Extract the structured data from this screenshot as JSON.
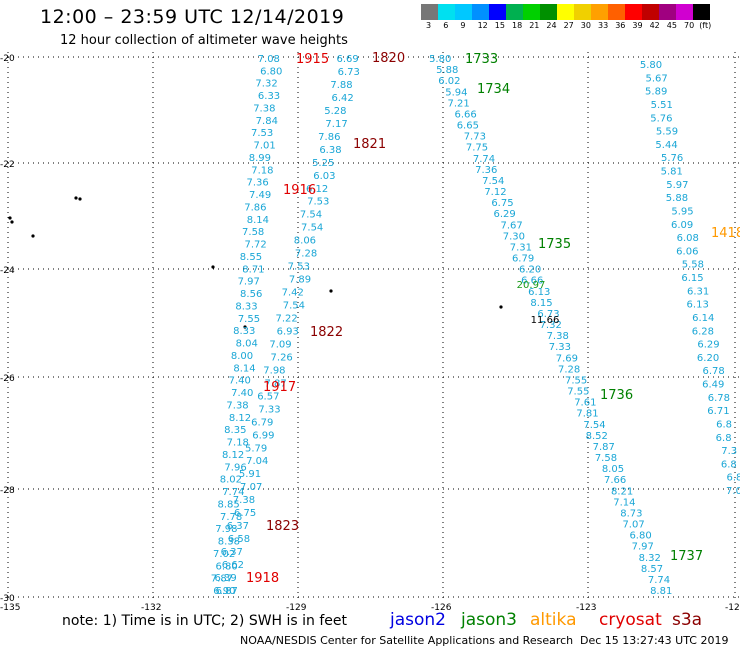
{
  "header": {
    "title": "12:00 – 23:59 UTC 12/14/2019",
    "subtitle": "12 hour collection of altimeter wave heights"
  },
  "colorbar": {
    "colors": [
      "#777777",
      "#00e0f0",
      "#00c8ff",
      "#0090ff",
      "#0000ff",
      "#00b050",
      "#00d000",
      "#009000",
      "#ffff00",
      "#f0d000",
      "#ffa000",
      "#ff6000",
      "#ff0000",
      "#c00000",
      "#a00080",
      "#d000d0",
      "#000000"
    ],
    "ticks": [
      "3",
      "6",
      "9",
      "12",
      "15",
      "18",
      "21",
      "24",
      "27",
      "30",
      "33",
      "36",
      "39",
      "42",
      "45",
      "70",
      "(ft)"
    ]
  },
  "map": {
    "lat_ticks": [
      "-20",
      "-22",
      "-24",
      "-26",
      "-28",
      "-30"
    ],
    "lon_ticks": [
      "-135",
      "-132",
      "-129",
      "-126",
      "-123",
      "-120"
    ],
    "tracks": [
      {
        "id": "t1",
        "color": "#1aa6d6",
        "labels": [
          "7.08",
          "6.80",
          "7.32",
          "6.33",
          "7.38",
          "7.84",
          "7.53",
          "7.01",
          "8.99",
          "7.18",
          "7.36",
          "7.49",
          "7.86",
          "8.14",
          "7.58",
          "7.72",
          "8.55",
          "8.71",
          "7.97",
          "8.56",
          "8.33",
          "7.55",
          "8.33",
          "8.04",
          "8.00",
          "8.14",
          "7.40",
          "7.40",
          "7.38",
          "8.12",
          "8.35",
          "7.18",
          "8.12",
          "7.96",
          "8.02",
          "7.74",
          "8.85",
          "7.78",
          "7.98",
          "8.38",
          "7.02",
          "6.80",
          "7.87",
          "6.90"
        ]
      },
      {
        "id": "t2",
        "color": "#1aa6d6",
        "labels": [
          "6.69",
          "6.73",
          "7.88",
          "6.42",
          "5.28",
          "7.17",
          "7.86",
          "6.38",
          "5.25",
          "6.03",
          "6.12",
          "7.53",
          "7.54",
          "7.54",
          "8.06",
          "7.28",
          "7.53",
          "7.89",
          "7.42",
          "7.54",
          "7.22",
          "6.93",
          "7.09",
          "7.26",
          "7.98",
          "7.87",
          "6.57",
          "7.33",
          "6.79",
          "6.99",
          "5.79",
          "7.04",
          "5.91",
          "7.07",
          "7.38",
          "6.75",
          "6.37",
          "6.58",
          "6.37",
          "6.62",
          "6.39",
          "6.87"
        ]
      },
      {
        "id": "t3",
        "color": "#1aa6d6",
        "labels": [
          "5.80",
          "5.88",
          "6.02",
          "5.94",
          "7.21",
          "6.66",
          "6.65",
          "7.73",
          "7.75",
          "7.74",
          "7.36",
          "7.54",
          "7.12",
          "6.75",
          "6.29",
          "7.67",
          "7.30",
          "7.31",
          "6.79",
          "6.20",
          "6.66",
          "6.13",
          "8.15",
          "6.73",
          "7.32",
          "7.38",
          "7.33",
          "7.69",
          "7.28",
          "7.55",
          "7.55",
          "7.61",
          "7.81",
          "7.54",
          "8.52",
          "7.87",
          "7.58",
          "8.05",
          "7.66",
          "8.21",
          "7.14",
          "8.73",
          "7.07",
          "6.80",
          "7.97",
          "8.32",
          "8.57",
          "7.74",
          "8.81"
        ]
      },
      {
        "id": "t4",
        "color": "#1aa6d6",
        "labels": [
          "5.80",
          "5.67",
          "5.89",
          "5.51",
          "5.76",
          "5.59",
          "5.44",
          "5.76",
          "5.81",
          "5.97",
          "5.88",
          "5.95",
          "6.09",
          "6.08",
          "6.06",
          "5.58",
          "6.15",
          "6.31",
          "6.13",
          "6.14",
          "6.28",
          "6.29",
          "6.20",
          "6.78",
          "6.49",
          "6.78",
          "6.71",
          "6.8",
          "6.8",
          "7.3",
          "6.8",
          "6.8",
          "7.0"
        ]
      }
    ],
    "anomalies": [
      {
        "text": "20.97",
        "color": "#1a9a1a"
      },
      {
        "text": "11.66",
        "color": "#000000"
      }
    ],
    "time_labels": [
      {
        "text": "1915",
        "color": "#e00000"
      },
      {
        "text": "1820",
        "color": "#8b0000"
      },
      {
        "text": "1733",
        "color": "#008000"
      },
      {
        "text": "1734",
        "color": "#008000"
      },
      {
        "text": "1821",
        "color": "#8b0000"
      },
      {
        "text": "1916",
        "color": "#e00000"
      },
      {
        "text": "1735",
        "color": "#008000"
      },
      {
        "text": "1418",
        "color": "#ff9900"
      },
      {
        "text": "1822",
        "color": "#8b0000"
      },
      {
        "text": "1917",
        "color": "#e00000"
      },
      {
        "text": "1736",
        "color": "#008000"
      },
      {
        "text": "1823",
        "color": "#8b0000"
      },
      {
        "text": "1737",
        "color": "#008000"
      },
      {
        "text": "1918",
        "color": "#e00000"
      }
    ]
  },
  "footer": {
    "note": "note: 1) Time is in UTC; 2) SWH is in feet",
    "satellites": [
      {
        "name": "jason2",
        "color": "#0000e0"
      },
      {
        "name": "jason3",
        "color": "#008000"
      },
      {
        "name": "altika",
        "color": "#ff9900"
      },
      {
        "name": "cryosat",
        "color": "#e00000"
      },
      {
        "name": "s3a",
        "color": "#8b0000"
      }
    ],
    "credit": "NOAA/NESDIS Center for Satellite Applications and Research",
    "timestamp": "Dec 15 13:27:43 UTC 2019"
  }
}
